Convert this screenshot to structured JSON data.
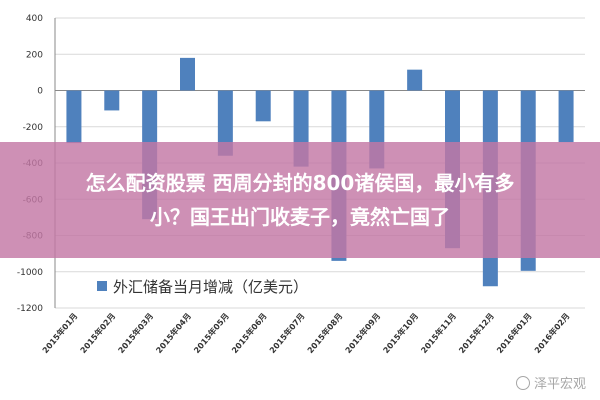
{
  "chart_data": {
    "type": "bar",
    "categories": [
      "2015年01月",
      "2015年02月",
      "2015年03月",
      "2015年04月",
      "2015年05月",
      "2015年06月",
      "2015年07月",
      "2015年08月",
      "2015年09月",
      "2015年10月",
      "2015年11月",
      "2015年12月",
      "2016年01月",
      "2016年02月"
    ],
    "series": [
      {
        "name": "外汇储备当月增减（亿美元）",
        "values": [
          -290,
          -110,
          -710,
          180,
          -360,
          -170,
          -420,
          -940,
          -430,
          115,
          -870,
          -1080,
          -995,
          -285
        ]
      }
    ],
    "ylim": [
      -1200,
      400
    ],
    "yticks": [
      400,
      200,
      0,
      -200,
      -400,
      -600,
      -800,
      -1000,
      -1200
    ],
    "grid": true,
    "legend_position": "bottom-left",
    "colors": {
      "bar": "#4f81bd",
      "grid": "#d9d9d9",
      "axis": "#888888"
    }
  },
  "overlay": {
    "headline_line1": "怎么配资股票 西周分封的800诸侯国，最小有多",
    "headline_line2": "小？国王出门收麦子，竟然亡国了"
  },
  "watermark": {
    "text": "泽平宏观"
  }
}
